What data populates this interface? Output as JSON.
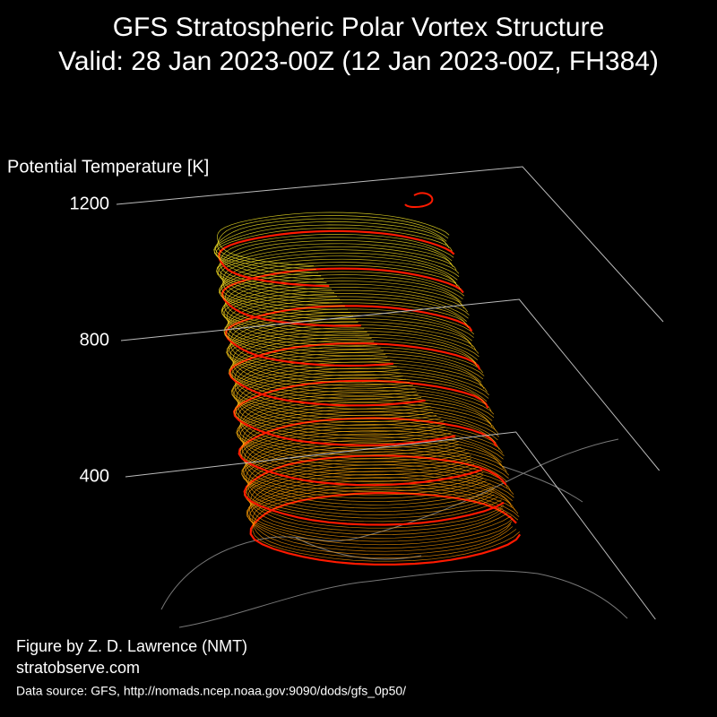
{
  "chart_data": {
    "type": "isosurface3d",
    "title": "GFS Stratospheric Polar Vortex Structure",
    "subtitle": "Valid: 28 Jan 2023-00Z  (12 Jan 2023-00Z, FH384)",
    "zlabel": "Potential Temperature [K]",
    "zlim": [
      0,
      1200
    ],
    "zticks": [
      400,
      800,
      1200
    ],
    "annotations": [
      "Figure by Z. D. Lawrence (NMT)",
      "stratobserve.com",
      "Data source: GFS, http://nomads.ncep.noaa.gov:9090/dods/gfs_0p50/"
    ]
  }
}
